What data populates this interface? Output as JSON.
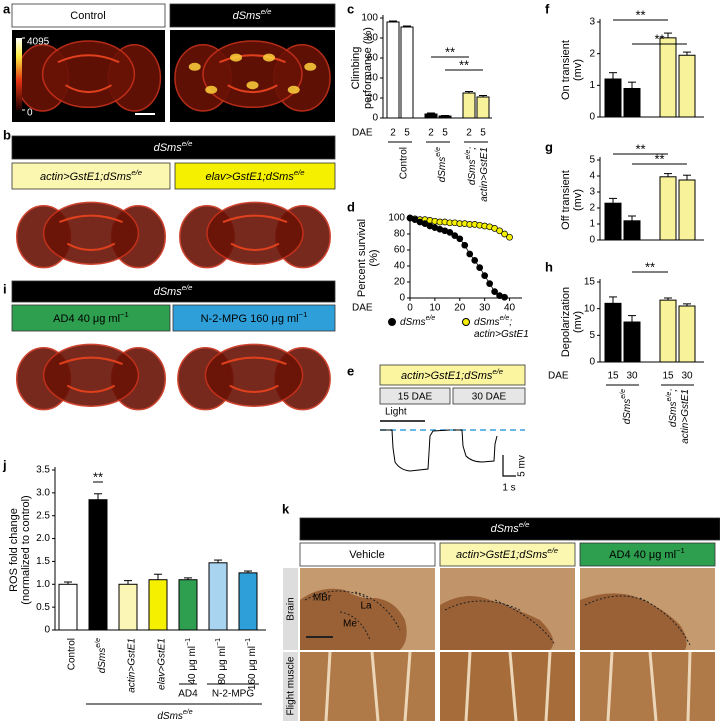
{
  "panel_labels": [
    "a",
    "b",
    "c",
    "d",
    "e",
    "f",
    "g",
    "h",
    "i",
    "j",
    "k"
  ],
  "panel_a": {
    "headers": [
      "Control",
      [
        "dSms",
        "e/e"
      ]
    ],
    "colorbar_ticks": [
      4095,
      0
    ]
  },
  "panel_b": {
    "header": [
      "dSms",
      "e/e"
    ],
    "conditions": [
      [
        "actin>GstE1;dSms",
        "e/e"
      ],
      [
        "elav>GstE1;dSms",
        "e/e"
      ]
    ]
  },
  "panel_i": {
    "header": [
      "dSms",
      "e/e"
    ],
    "conditions": [
      [
        "AD4 40 μg ml",
        "−1"
      ],
      [
        "N-2-MPG 160 μg ml",
        "−1"
      ]
    ]
  },
  "panel_e": {
    "genotype": [
      "actin>GstE1;dSms",
      "e/e"
    ],
    "ages": [
      "15 DAE",
      "30 DAE"
    ],
    "stimulus": "Light",
    "scale_y": "5 mv",
    "scale_x": "1 s"
  },
  "panel_k": {
    "header": [
      "dSms",
      "e/e"
    ],
    "conditions": [
      "Vehicle",
      [
        "actin>GstE1;dSms",
        "e/e"
      ],
      [
        "AD4 40 μg ml",
        "−1"
      ]
    ],
    "rows": [
      "Brain",
      "Flight muscle"
    ],
    "regions": [
      "MBr",
      "La",
      "Me"
    ]
  },
  "chart_data": [
    {
      "type": "bar",
      "ylabel": [
        "Climbing",
        "performance (%)"
      ],
      "ylim": [
        0,
        100
      ],
      "yticks": [
        0,
        20,
        40,
        60,
        80,
        100
      ],
      "xlabel": "DAE",
      "categories": [
        "2",
        "5",
        "2",
        "5",
        "2",
        "5"
      ],
      "values": [
        96,
        91,
        4,
        2,
        25,
        21
      ],
      "errors": [
        1,
        1,
        1,
        0.5,
        1.5,
        1.5
      ],
      "colors": [
        "#ffffff",
        "#ffffff",
        "#000000",
        "#000000",
        "#f8f39a",
        "#f8f39a"
      ],
      "significance": [
        "**",
        "**"
      ],
      "groups": [
        "Control",
        [
          "dSms",
          "e/e"
        ],
        [
          [
            "dSms",
            "e/e",
            ";"
          ],
          [
            "actin>GstE1"
          ]
        ]
      ]
    },
    {
      "type": "line",
      "ylabel": [
        "Percent survival",
        "(%)"
      ],
      "ylim": [
        0,
        100
      ],
      "yticks": [
        0,
        20,
        40,
        60,
        80,
        100
      ],
      "xlabel": "DAE",
      "xlim": [
        0,
        45
      ],
      "xticks": [
        0,
        10,
        20,
        30,
        40
      ],
      "series": [
        {
          "name": [
            "dSms",
            "e/e"
          ],
          "color": "#000000",
          "x": [
            0,
            2,
            4,
            6,
            8,
            10,
            12,
            14,
            16,
            18,
            20,
            22,
            24,
            26,
            28,
            30,
            32,
            34,
            36,
            38
          ],
          "values": [
            100,
            98,
            95,
            93,
            90,
            88,
            86,
            84,
            82,
            78,
            74,
            66,
            55,
            47,
            38,
            28,
            18,
            8,
            3,
            1
          ]
        },
        {
          "name": [
            [
              "dSms",
              "e/e",
              ";"
            ],
            [
              "actin>GstE1"
            ]
          ],
          "color": "#f5f000",
          "x": [
            0,
            2,
            4,
            6,
            8,
            10,
            12,
            14,
            16,
            18,
            20,
            22,
            24,
            26,
            28,
            30,
            32,
            34,
            36,
            38,
            40
          ],
          "values": [
            100,
            99,
            98,
            98,
            97,
            96,
            95,
            95,
            94,
            94,
            93,
            93,
            92,
            92,
            91,
            90,
            89,
            87,
            84,
            80,
            76
          ]
        }
      ]
    },
    {
      "type": "bar",
      "ylabel": [
        "On transient",
        "(mv)"
      ],
      "ylim": [
        0,
        3
      ],
      "yticks": [
        0,
        1,
        2,
        3
      ],
      "values": [
        1.2,
        0.9,
        2.5,
        1.95
      ],
      "errors": [
        0.2,
        0.2,
        0.15,
        0.1
      ],
      "colors": [
        "#000000",
        "#000000",
        "#f8f39a",
        "#f8f39a"
      ],
      "significance": [
        "**",
        "**"
      ]
    },
    {
      "type": "bar",
      "ylabel": [
        "Off transient",
        "(mv)"
      ],
      "ylim": [
        0,
        5
      ],
      "yticks": [
        0,
        1,
        2,
        3,
        4,
        5
      ],
      "values": [
        2.3,
        1.2,
        3.95,
        3.75
      ],
      "errors": [
        0.3,
        0.3,
        0.2,
        0.3
      ],
      "colors": [
        "#000000",
        "#000000",
        "#f8f39a",
        "#f8f39a"
      ],
      "significance": [
        "**",
        "**"
      ]
    },
    {
      "type": "bar",
      "ylabel": [
        "Depolarization",
        "(mv)"
      ],
      "ylim": [
        0,
        15
      ],
      "yticks": [
        0,
        5,
        10,
        15
      ],
      "xlabel": "DAE",
      "categories": [
        "15",
        "30",
        "15",
        "30"
      ],
      "values": [
        11,
        7.5,
        11.6,
        10.5
      ],
      "errors": [
        1.2,
        1.2,
        0.4,
        0.4
      ],
      "colors": [
        "#000000",
        "#000000",
        "#f8f39a",
        "#f8f39a"
      ],
      "significance": [
        "**"
      ],
      "groups": [
        [
          "dSms",
          "e/e"
        ],
        [
          [
            "dSms",
            "e/e",
            ";"
          ],
          [
            "actin>GstE1"
          ]
        ]
      ]
    },
    {
      "type": "bar",
      "ylabel": [
        "ROS fold change",
        "(normalized to control)"
      ],
      "ylim": [
        0,
        3.5
      ],
      "yticks": [
        0,
        0.5,
        {
          "value": 1,
          "label": "1.0"
        },
        1.5,
        {
          "value": 2,
          "label": "2.0"
        },
        2.5,
        {
          "value": 3,
          "label": "3.0"
        },
        3.5
      ],
      "categories": [
        "Control",
        [
          "dSms",
          "e/e"
        ],
        "actin>GstE1",
        "elav>GstE1",
        [
          "40 μg ml",
          "−1"
        ],
        [
          "80 μg ml",
          "−1"
        ],
        [
          "160 μg ml",
          "−1"
        ]
      ],
      "values": [
        1.0,
        2.85,
        1.0,
        1.1,
        1.1,
        1.47,
        1.25
      ],
      "errors": [
        0.05,
        0.13,
        0.08,
        0.12,
        0.04,
        0.06,
        0.04
      ],
      "colors": [
        "#ffffff",
        "#000000",
        "#fbf6b5",
        "#f5f000",
        "#2e9e4f",
        "#a9d4f0",
        "#2f9fd9"
      ],
      "significance": [
        "**"
      ],
      "groups": [
        "AD4",
        "N-2-MPG",
        [
          "dSms",
          "e/e"
        ]
      ]
    }
  ]
}
